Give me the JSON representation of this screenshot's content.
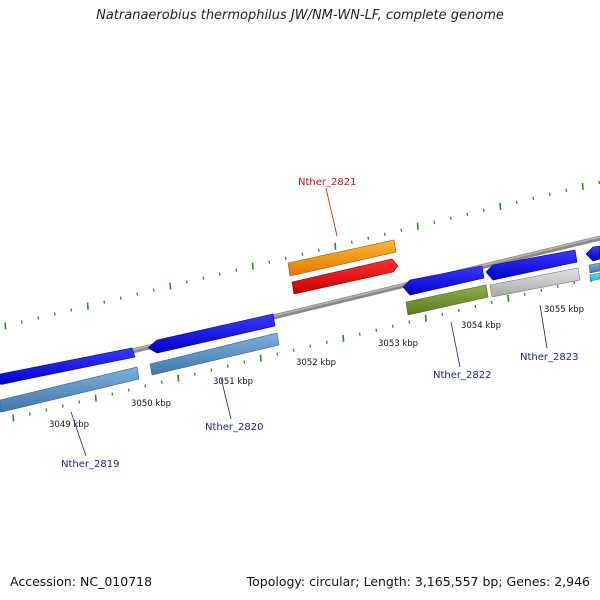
{
  "title": "Natranaerobius thermophilus JW/NM-WN-LF, complete genome",
  "accession": "Accession: NC_010718",
  "summary": "Topology: circular; Length: 3,165,557 bp; Genes: 2,946",
  "colors": {
    "backbone": "#8a8a8a",
    "tick": "#2a8a2a",
    "label": "#1a1aa8",
    "highlight": "#cc1111"
  },
  "kbp_labels": [
    "3049 kbp",
    "3050 kbp",
    "3051 kbp",
    "3052 kbp",
    "3053 kbp",
    "3054 kbp",
    "3055 kbp"
  ],
  "genes": [
    {
      "name": "Nther_2819",
      "highlight": false
    },
    {
      "name": "Nther_2820",
      "highlight": false
    },
    {
      "name": "Nther_2821",
      "highlight": true
    },
    {
      "name": "Nther_2822",
      "highlight": false
    },
    {
      "name": "Nther_2823",
      "highlight": false
    }
  ]
}
